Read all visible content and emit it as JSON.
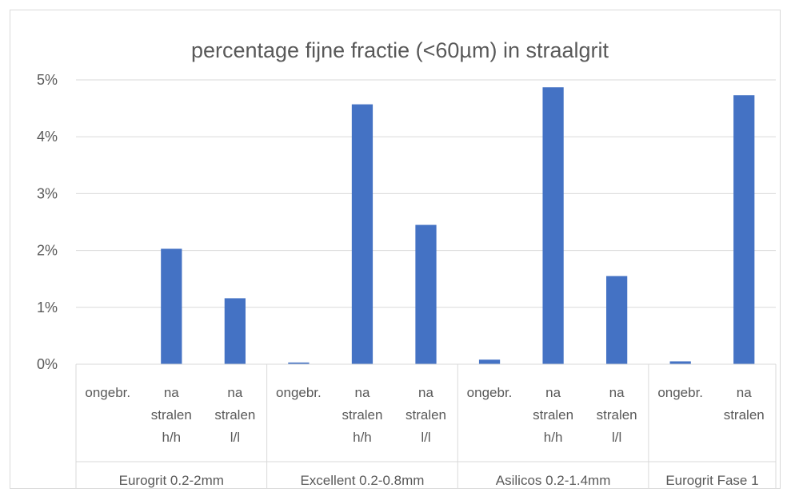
{
  "chart_data": {
    "type": "bar",
    "title": "percentage fijne fractie (<60µm) in straalgrit",
    "ylim": [
      0,
      5
    ],
    "y_ticks": [
      "0%",
      "1%",
      "2%",
      "3%",
      "4%",
      "5%"
    ],
    "grid": true,
    "bar_color": "#4472c4",
    "groups": [
      {
        "name": "Eurogrit 0.2-2mm",
        "categories": [
          {
            "label": [
              "ongebr."
            ],
            "value": 0.0
          },
          {
            "label": [
              "na",
              "stralen",
              "h/h"
            ],
            "value": 2.03
          },
          {
            "label": [
              "na",
              "stralen",
              "l/l"
            ],
            "value": 1.16
          }
        ]
      },
      {
        "name": "Excellent 0.2-0.8mm",
        "categories": [
          {
            "label": [
              "ongebr."
            ],
            "value": 0.03
          },
          {
            "label": [
              "na",
              "stralen",
              "h/h"
            ],
            "value": 4.57
          },
          {
            "label": [
              "na",
              "stralen",
              "l/l"
            ],
            "value": 2.45
          }
        ]
      },
      {
        "name": "Asilicos 0.2-1.4mm",
        "categories": [
          {
            "label": [
              "ongebr."
            ],
            "value": 0.08
          },
          {
            "label": [
              "na",
              "stralen",
              "h/h"
            ],
            "value": 4.87
          },
          {
            "label": [
              "na",
              "stralen",
              "l/l"
            ],
            "value": 1.55
          }
        ]
      },
      {
        "name": "Eurogrit Fase 1",
        "categories": [
          {
            "label": [
              "ongebr."
            ],
            "value": 0.05
          },
          {
            "label": [
              "na",
              "stralen"
            ],
            "value": 4.73
          }
        ]
      }
    ]
  }
}
